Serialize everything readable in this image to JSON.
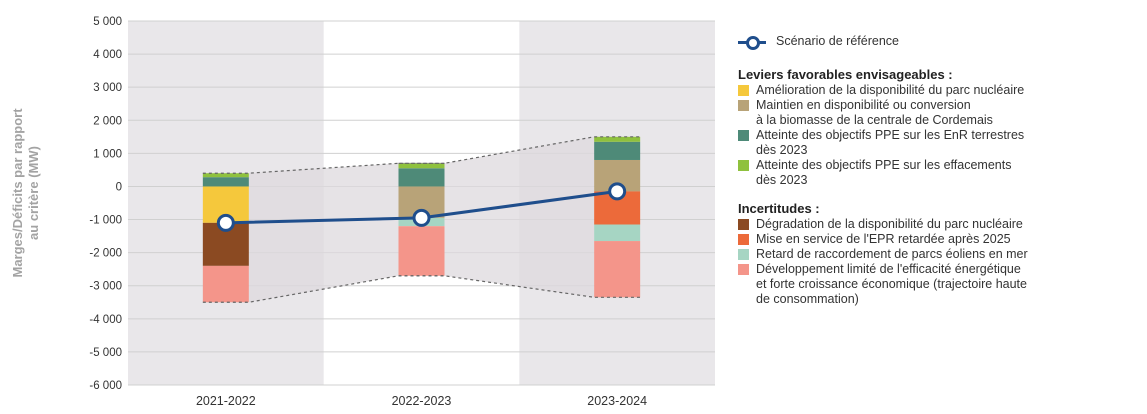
{
  "chart_data": {
    "type": "bar",
    "stacked": true,
    "categories": [
      "2021-2022",
      "2022-2023",
      "2023-2024"
    ],
    "ylabel": "Marges/Déficits  par rapport au critère (MW)",
    "ylim": [
      -6000,
      5000
    ],
    "yticks": [
      5000,
      4000,
      3000,
      2000,
      1000,
      0,
      -1000,
      -2000,
      -3000,
      -4000,
      -5000,
      -6000
    ],
    "ytick_labels": [
      "5 000",
      "4 000",
      "3 000",
      "2 000",
      "1 000",
      "0",
      "-1 000",
      "-2 000",
      "-3 000",
      "-4 000",
      "-5 000",
      "-6 000"
    ],
    "grid": true,
    "legend_position": "right",
    "reference": {
      "name": "Scénario de référence",
      "color": "#1f4e8c",
      "values": [
        -1100,
        -950,
        -150
      ]
    },
    "favorable_title": "Leviers favorables envisageables :",
    "favorable": [
      {
        "name": "Amélioration de la disponibilité du parc nucléaire",
        "color": "#f5c83c",
        "values": [
          1100,
          0,
          0
        ]
      },
      {
        "name": "Maintien en disponibilité ou conversion\nà la biomasse de la centrale de Cordemais",
        "color": "#b8a378",
        "values": [
          0,
          950,
          950
        ]
      },
      {
        "name": "Atteinte des objectifs PPE sur les EnR terrestres\ndès 2023",
        "color": "#4e8a78",
        "values": [
          280,
          550,
          550
        ]
      },
      {
        "name": "Atteinte des objectifs PPE sur les effacements\ndès 2023",
        "color": "#8fc13e",
        "values": [
          120,
          150,
          150
        ]
      }
    ],
    "uncertainties_title": "Incertitudes :",
    "uncertainties": [
      {
        "name": "Dégradation de la disponibilité du parc nucléaire",
        "color": "#8b4a22",
        "values": [
          1300,
          0,
          0
        ]
      },
      {
        "name": "Mise en service de l'EPR retardée après 2025",
        "color": "#ec6a3a",
        "values": [
          0,
          0,
          1000
        ]
      },
      {
        "name": "Retard de raccordement de parcs éoliens en mer",
        "color": "#a6d5c3",
        "values": [
          0,
          250,
          500
        ]
      },
      {
        "name": "Développement limité de l'efficacité énergétique\net forte croissance économique (trajectoire haute\nde consommation)",
        "color": "#f4958a",
        "values": [
          1100,
          1500,
          1700
        ]
      }
    ],
    "colors": {
      "band": "#e9e7ea",
      "funnel": "#ddd9de",
      "grid": "#d0d0d0"
    }
  }
}
